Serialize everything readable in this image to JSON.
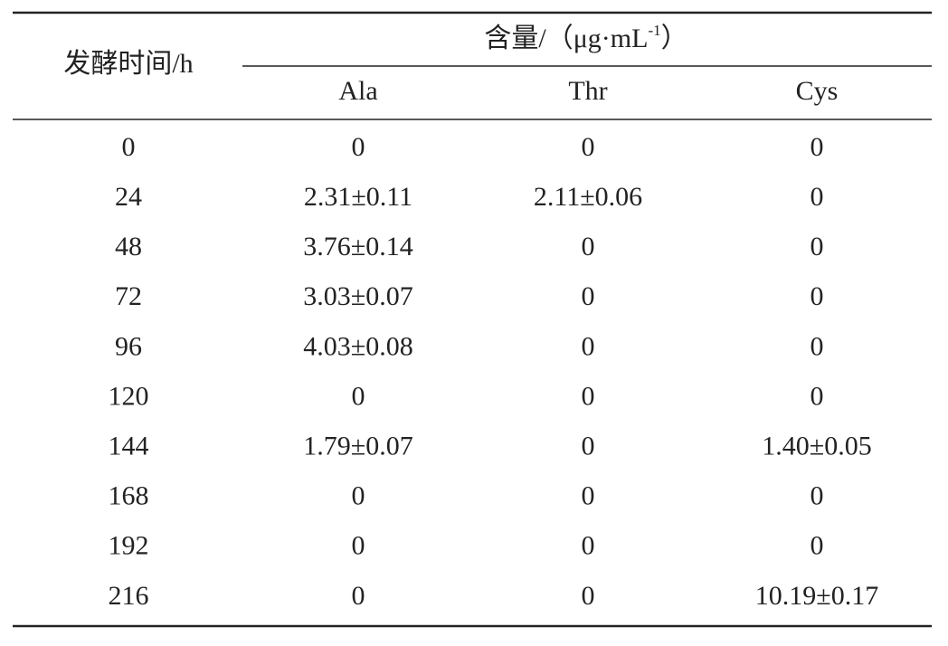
{
  "table": {
    "row_header": "发酵时间/h",
    "group_header": {
      "text": "含量/（μg·mL",
      "superscript": "-1",
      "close": "）"
    },
    "columns": [
      "Ala",
      "Thr",
      "Cys"
    ],
    "rows": [
      [
        "0",
        "0",
        "0",
        "0"
      ],
      [
        "24",
        "2.31±0.11",
        "2.11±0.06",
        "0"
      ],
      [
        "48",
        "3.76±0.14",
        "0",
        "0"
      ],
      [
        "72",
        "3.03±0.07",
        "0",
        "0"
      ],
      [
        "96",
        "4.03±0.08",
        "0",
        "0"
      ],
      [
        "120",
        "0",
        "0",
        "0"
      ],
      [
        "144",
        "1.79±0.07",
        "0",
        "1.40±0.05"
      ],
      [
        "168",
        "0",
        "0",
        "0"
      ],
      [
        "192",
        "0",
        "0",
        "0"
      ],
      [
        "216",
        "0",
        "0",
        "10.19±0.17"
      ]
    ]
  }
}
